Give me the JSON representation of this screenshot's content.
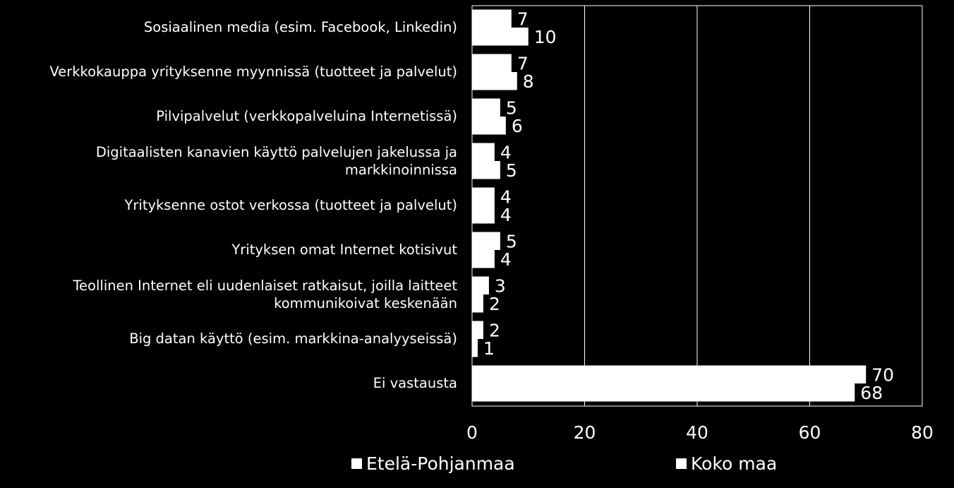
{
  "chart_data": {
    "type": "bar",
    "orientation": "horizontal",
    "categories": [
      "Sosiaalinen media (esim. Facebook, Linkedin)",
      "Verkkokauppa yrityksenne myynnissä (tuotteet ja palvelut)",
      "Pilvipalvelut  (verkkopalveluina Internetissä)",
      "Digitaalisten kanavien käyttö palvelujen jakelussa ja markkinoinnissa",
      "Yrityksenne ostot verkossa (tuotteet ja palvelut)",
      "Yrityksen omat Internet kotisivut",
      "Teollinen Internet eli uudenlaiset ratkaisut, joilla laitteet kommunikoivat keskenään",
      "Big datan käyttö (esim. markkina-analyyseissä)",
      "Ei vastausta"
    ],
    "series": [
      {
        "name": "Etelä-Pohjanmaa",
        "values": [
          7,
          7,
          5,
          4,
          4,
          5,
          3,
          2,
          70
        ],
        "color": "#ffffff"
      },
      {
        "name": "Koko maa",
        "values": [
          10,
          8,
          6,
          5,
          4,
          4,
          2,
          1,
          68
        ],
        "color": "#ffffff"
      }
    ],
    "xlim": [
      0,
      80
    ],
    "xticks": [
      "0",
      "20",
      "40",
      "60",
      "80"
    ],
    "grid": true,
    "legend": "bottom",
    "background": "#000000"
  }
}
